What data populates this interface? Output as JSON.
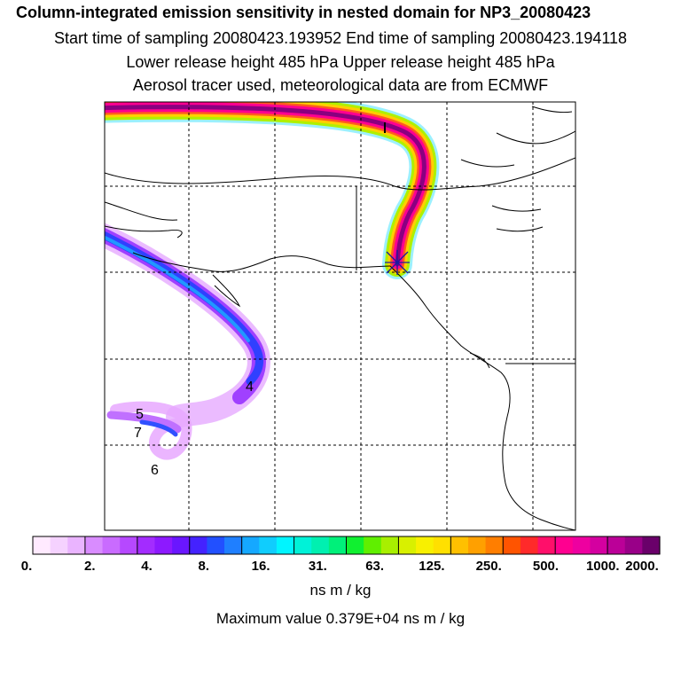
{
  "header": {
    "title": "Column-integrated emission sensitivity in nested domain for NP3_20080423",
    "line2": "Start time of sampling 20080423.193952     End time of sampling 20080423.194118",
    "line3": "Lower release height  485 hPa        Upper release height  485 hPa",
    "line4": "Aerosol tracer used, meteorological data are from ECMWF"
  },
  "map": {
    "point_labels": [
      "1",
      "4",
      "5",
      "7",
      "6"
    ],
    "release_marker": "release-point"
  },
  "colorbar": {
    "tick_labels": [
      "0.",
      "2.",
      "4.",
      "8.",
      "16.",
      "31.",
      "63.",
      "125.",
      "250.",
      "500.",
      "1000.",
      "2000."
    ],
    "colors": [
      "#ffeaff",
      "#f5d2ff",
      "#eab4ff",
      "#d98cff",
      "#c96bff",
      "#b648ff",
      "#a32cff",
      "#8d19ff",
      "#6a16ff",
      "#4422ff",
      "#2250ff",
      "#1f7fff",
      "#15a8ff",
      "#10cdfd",
      "#00f5ff",
      "#00f2d8",
      "#00f0b0",
      "#00f07a",
      "#10f030",
      "#60ef00",
      "#a8ef00",
      "#d8f000",
      "#f8f000",
      "#ffe000",
      "#ffc000",
      "#ffa000",
      "#ff7e00",
      "#ff5400",
      "#ff2a2a",
      "#ff0f6a",
      "#ff0090",
      "#ee00a0",
      "#d400a0",
      "#bb0098",
      "#990088",
      "#6a006a"
    ],
    "unit": "ns m / kg",
    "max_label": "Maximum value  0.379E+04 ns m / kg"
  }
}
